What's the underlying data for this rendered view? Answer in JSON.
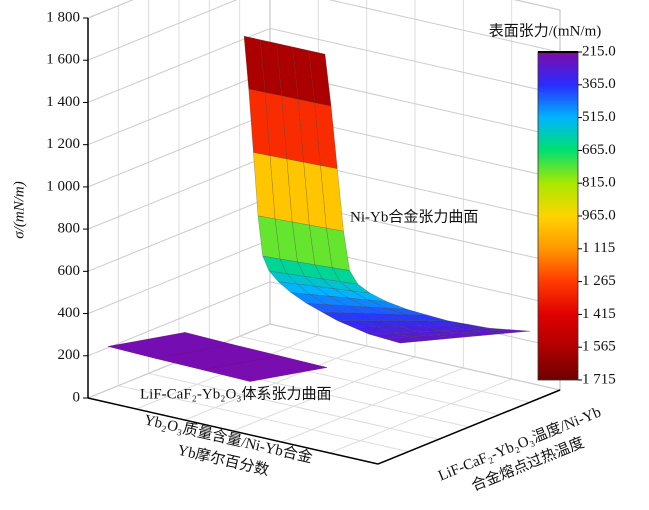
{
  "chart_data": {
    "type": "surface3d",
    "z_label": "σ/(mN/m)",
    "x_label": [
      "Yb₂O₃质量含量/Ni-Yb合金",
      "Yb摩尔百分数"
    ],
    "y_label": [
      "LiF-CaF₂-Yb₂O₃温度/Ni-Yb",
      "合金熔点过热温度"
    ],
    "zlim": [
      0,
      1800
    ],
    "zticks": [
      0,
      200,
      400,
      600,
      800,
      {
        "value": 1000,
        "label": "1 000"
      },
      {
        "value": 1200,
        "label": "1 200"
      },
      {
        "value": 1400,
        "label": "1 400"
      },
      {
        "value": 1600,
        "label": "1 600"
      },
      {
        "value": 1800,
        "label": "1 800"
      }
    ],
    "grid": true,
    "series": [
      {
        "name": "Ni-Yb合金张力曲面",
        "values": [
          1700,
          1450,
          1150,
          850,
          660,
          590,
          540,
          490,
          440,
          400,
          360,
          330,
          300,
          280,
          260
        ]
      },
      {
        "name": "LiF-CaF₂-Yb₂O₃体系张力曲面",
        "values": [
          235,
          230,
          228,
          225
        ]
      }
    ],
    "colorbar": {
      "title": "表面张力/(mN/m)",
      "ticks": [
        {
          "value": 215,
          "label": "215.0"
        },
        {
          "value": 365,
          "label": "365.0"
        },
        {
          "value": 515,
          "label": "515.0"
        },
        {
          "value": 665,
          "label": "665.0"
        },
        {
          "value": 815,
          "label": "815.0"
        },
        {
          "value": 965,
          "label": "965.0"
        },
        {
          "value": 1115,
          "label": "1 115"
        },
        {
          "value": 1265,
          "label": "1 265"
        },
        {
          "value": 1415,
          "label": "1 415"
        },
        {
          "value": 1565,
          "label": "1 565"
        },
        {
          "value": 1715,
          "label": "1 715"
        }
      ],
      "colors": [
        "#7f0aa8",
        "#2b2bff",
        "#00b4ff",
        "#00e070",
        "#a8e800",
        "#ffd400",
        "#ff9800",
        "#ff3a00",
        "#e00000",
        "#b00000",
        "#6e0000"
      ]
    }
  }
}
